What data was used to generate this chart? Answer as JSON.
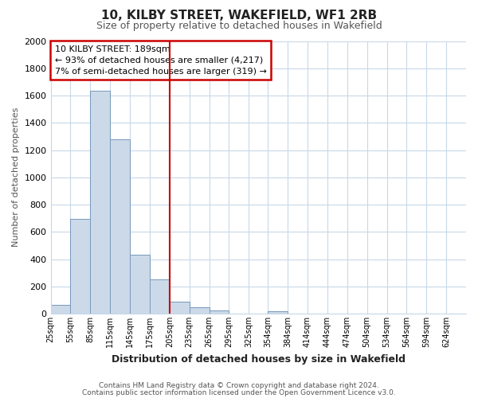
{
  "title": "10, KILBY STREET, WAKEFIELD, WF1 2RB",
  "subtitle": "Size of property relative to detached houses in Wakefield",
  "xlabel": "Distribution of detached houses by size in Wakefield",
  "ylabel": "Number of detached properties",
  "bin_labels": [
    "25sqm",
    "55sqm",
    "85sqm",
    "115sqm",
    "145sqm",
    "175sqm",
    "205sqm",
    "235sqm",
    "265sqm",
    "295sqm",
    "325sqm",
    "354sqm",
    "384sqm",
    "414sqm",
    "444sqm",
    "474sqm",
    "504sqm",
    "534sqm",
    "564sqm",
    "594sqm",
    "624sqm"
  ],
  "bar_values": [
    65,
    695,
    1635,
    1280,
    435,
    250,
    85,
    48,
    25,
    0,
    0,
    15,
    0,
    0,
    0,
    0,
    0,
    0,
    0,
    0,
    0
  ],
  "bar_color": "#ccd9e8",
  "bar_edge_color": "#7799bb",
  "ylim": [
    0,
    2000
  ],
  "yticks": [
    0,
    200,
    400,
    600,
    800,
    1000,
    1200,
    1400,
    1600,
    1800,
    2000
  ],
  "property_line_x": 205,
  "property_line_color": "#cc0000",
  "annotation_title": "10 KILBY STREET: 189sqm",
  "annotation_line1": "← 93% of detached houses are smaller (4,217)",
  "annotation_line2": "7% of semi-detached houses are larger (319) →",
  "annotation_box_color": "#ffffff",
  "annotation_box_edge": "#cc0000",
  "footer1": "Contains HM Land Registry data © Crown copyright and database right 2024.",
  "footer2": "Contains public sector information licensed under the Open Government Licence v3.0.",
  "background_color": "#ffffff",
  "grid_color": "#c8d8e8",
  "bin_starts": [
    25,
    55,
    85,
    115,
    145,
    175,
    205,
    235,
    265,
    295,
    325,
    354,
    384,
    414,
    444,
    474,
    504,
    534,
    564,
    594,
    624
  ],
  "bin_width": 30
}
